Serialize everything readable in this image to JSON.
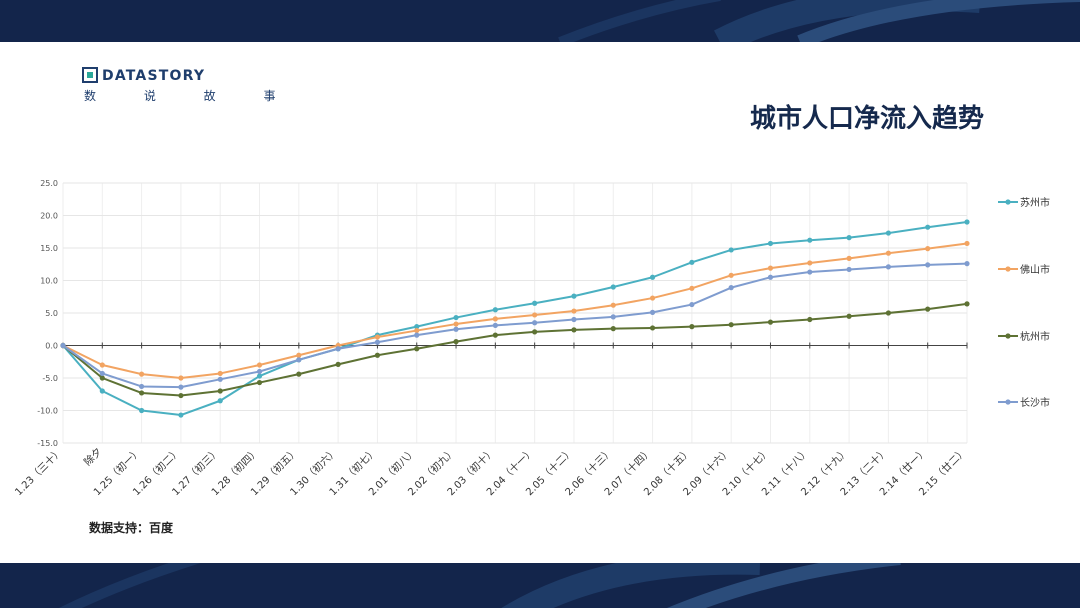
{
  "brand": {
    "name": "DATASTORY",
    "subtitle": "数 说 故 事",
    "color": "#1f3e6d",
    "accent": "#2aa89a"
  },
  "title": "城市人口净流入趋势",
  "source": "数据支持：百度",
  "chart_data": {
    "type": "line",
    "title": "",
    "xlabel": "",
    "ylabel": "",
    "ylim": [
      -15,
      25
    ],
    "yticks": [
      "25.0",
      "20.0",
      "15.0",
      "10.0",
      "5.0",
      "0.0",
      "-5.0",
      "-10.0",
      "-15.0"
    ],
    "grid": true,
    "legend_position": "right",
    "categories": [
      "1.23（三十）",
      "除夕",
      "1.25（初一）",
      "1.26（初二）",
      "1.27（初三）",
      "1.28（初四）",
      "1.29（初五）",
      "1.30（初六）",
      "1.31（初七）",
      "2.01（初八）",
      "2.02（初九）",
      "2.03（初十）",
      "2.04（十一）",
      "2.05（十二）",
      "2.06（十三）",
      "2.07（十四）",
      "2.08（十五）",
      "2.09（十六）",
      "2.10（十七）",
      "2.11（十八）",
      "2.12（十九）",
      "2.13（二十）",
      "2.14（廿一）",
      "2.15（廿二）"
    ],
    "series": [
      {
        "name": "苏州市",
        "color": "#4ab0c1",
        "values": [
          0,
          -7.0,
          -10.0,
          -10.7,
          -8.5,
          -4.7,
          -2.2,
          -0.5,
          1.6,
          2.9,
          4.3,
          5.5,
          6.5,
          7.6,
          9.0,
          10.5,
          12.8,
          14.7,
          15.7,
          16.2,
          16.6,
          17.3,
          18.2,
          19.0
        ]
      },
      {
        "name": "佛山市",
        "color": "#f2a462",
        "values": [
          0,
          -3.0,
          -4.4,
          -5.0,
          -4.3,
          -3.0,
          -1.5,
          0.0,
          1.3,
          2.3,
          3.3,
          4.1,
          4.7,
          5.3,
          6.2,
          7.3,
          8.8,
          10.8,
          11.9,
          12.7,
          13.4,
          14.2,
          14.9,
          15.7
        ]
      },
      {
        "name": "杭州市",
        "color": "#5e7234",
        "values": [
          0,
          -5.0,
          -7.3,
          -7.7,
          -7.0,
          -5.7,
          -4.4,
          -2.9,
          -1.5,
          -0.5,
          0.6,
          1.6,
          2.1,
          2.4,
          2.6,
          2.7,
          2.9,
          3.2,
          3.6,
          4.0,
          4.5,
          5.0,
          5.6,
          6.4
        ]
      },
      {
        "name": "长沙市",
        "color": "#7f9ccf",
        "values": [
          0,
          -4.3,
          -6.3,
          -6.4,
          -5.2,
          -4.0,
          -2.2,
          -0.5,
          0.5,
          1.6,
          2.5,
          3.1,
          3.5,
          4.0,
          4.4,
          5.1,
          6.3,
          8.9,
          10.5,
          11.3,
          11.7,
          12.1,
          12.4,
          12.6
        ]
      }
    ]
  }
}
